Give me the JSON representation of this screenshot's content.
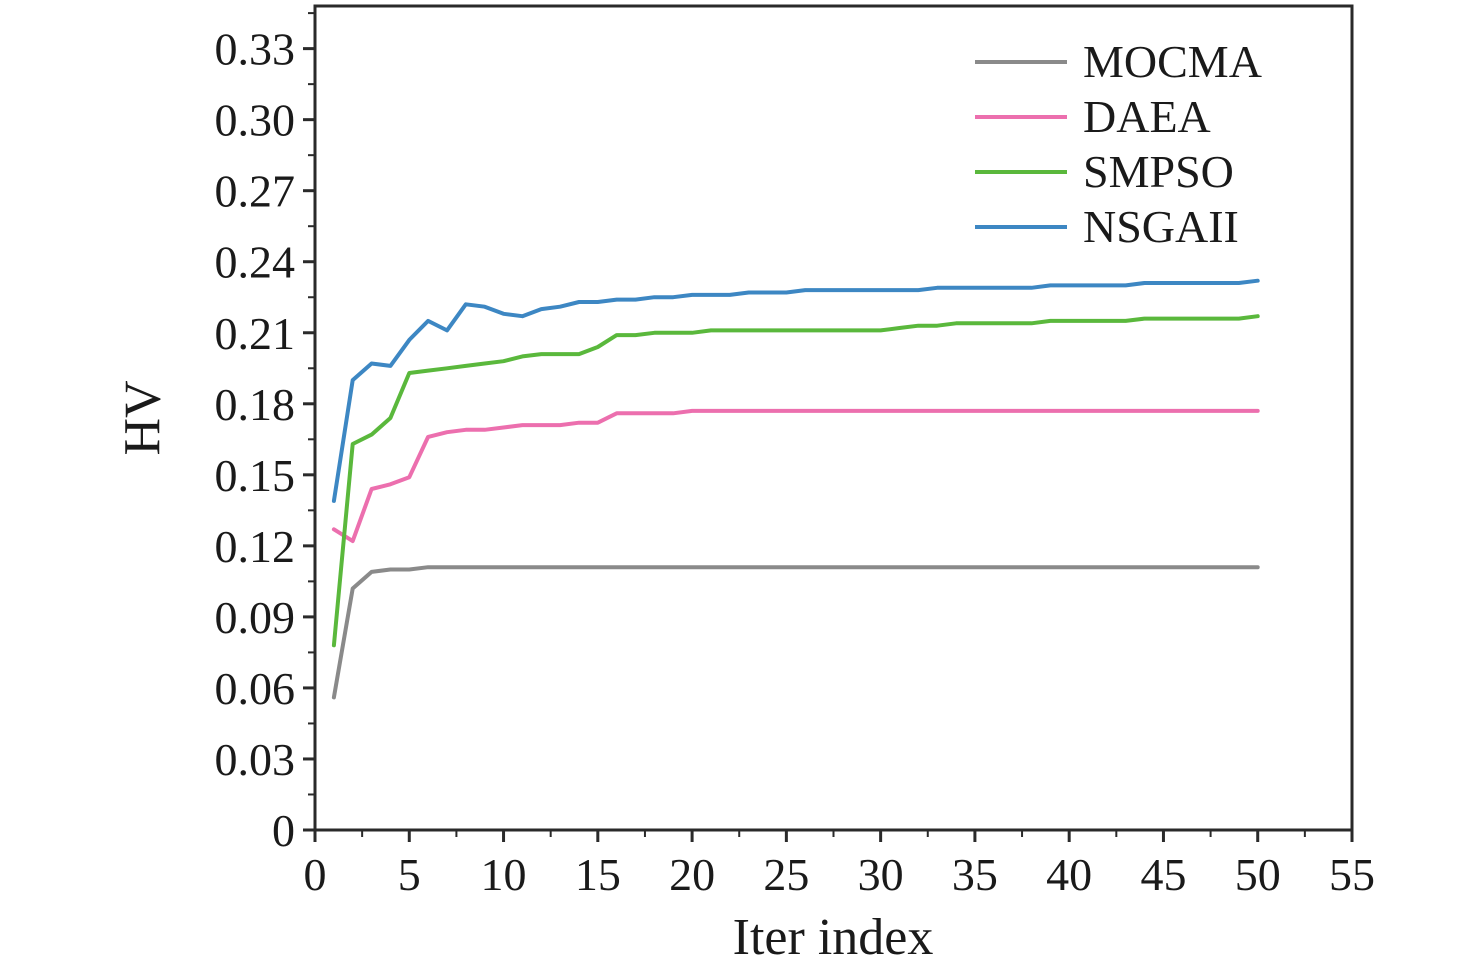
{
  "chart_data": {
    "type": "line",
    "title": "",
    "xlabel": "Iter index",
    "ylabel": "HV",
    "xlim": [
      0,
      55
    ],
    "ylim": [
      0,
      0.348
    ],
    "x_ticks": [
      0,
      5,
      10,
      15,
      20,
      25,
      30,
      35,
      40,
      45,
      50,
      55
    ],
    "y_ticks": [
      0,
      0.03,
      0.06,
      0.09,
      0.12,
      0.15,
      0.18,
      0.21,
      0.24,
      0.27,
      0.3,
      0.33
    ],
    "grid": false,
    "legend_position": "top-right-inside",
    "axis_color": "#2a2a2a",
    "x": [
      1,
      2,
      3,
      4,
      5,
      6,
      7,
      8,
      9,
      10,
      11,
      12,
      13,
      14,
      15,
      16,
      17,
      18,
      19,
      20,
      21,
      22,
      23,
      24,
      25,
      26,
      27,
      28,
      29,
      30,
      31,
      32,
      33,
      34,
      35,
      36,
      37,
      38,
      39,
      40,
      41,
      42,
      43,
      44,
      45,
      46,
      47,
      48,
      49,
      50
    ],
    "series": [
      {
        "name": "MOCMA",
        "color": "#8a8a8a",
        "values": [
          0.056,
          0.102,
          0.109,
          0.11,
          0.11,
          0.111,
          0.111,
          0.111,
          0.111,
          0.111,
          0.111,
          0.111,
          0.111,
          0.111,
          0.111,
          0.111,
          0.111,
          0.111,
          0.111,
          0.111,
          0.111,
          0.111,
          0.111,
          0.111,
          0.111,
          0.111,
          0.111,
          0.111,
          0.111,
          0.111,
          0.111,
          0.111,
          0.111,
          0.111,
          0.111,
          0.111,
          0.111,
          0.111,
          0.111,
          0.111,
          0.111,
          0.111,
          0.111,
          0.111,
          0.111,
          0.111,
          0.111,
          0.111,
          0.111,
          0.111
        ]
      },
      {
        "name": "DAEA",
        "color": "#ec6fae",
        "values": [
          0.127,
          0.122,
          0.144,
          0.146,
          0.149,
          0.166,
          0.168,
          0.169,
          0.169,
          0.17,
          0.171,
          0.171,
          0.171,
          0.172,
          0.172,
          0.176,
          0.176,
          0.176,
          0.176,
          0.177,
          0.177,
          0.177,
          0.177,
          0.177,
          0.177,
          0.177,
          0.177,
          0.177,
          0.177,
          0.177,
          0.177,
          0.177,
          0.177,
          0.177,
          0.177,
          0.177,
          0.177,
          0.177,
          0.177,
          0.177,
          0.177,
          0.177,
          0.177,
          0.177,
          0.177,
          0.177,
          0.177,
          0.177,
          0.177,
          0.177
        ]
      },
      {
        "name": "SMPSO",
        "color": "#5ab83c",
        "values": [
          0.078,
          0.163,
          0.167,
          0.174,
          0.193,
          0.194,
          0.195,
          0.196,
          0.197,
          0.198,
          0.2,
          0.201,
          0.201,
          0.201,
          0.204,
          0.209,
          0.209,
          0.21,
          0.21,
          0.21,
          0.211,
          0.211,
          0.211,
          0.211,
          0.211,
          0.211,
          0.211,
          0.211,
          0.211,
          0.211,
          0.212,
          0.213,
          0.213,
          0.214,
          0.214,
          0.214,
          0.214,
          0.214,
          0.215,
          0.215,
          0.215,
          0.215,
          0.215,
          0.216,
          0.216,
          0.216,
          0.216,
          0.216,
          0.216,
          0.217
        ]
      },
      {
        "name": "NSGAII",
        "color": "#3d87c3",
        "values": [
          0.139,
          0.19,
          0.197,
          0.196,
          0.207,
          0.215,
          0.211,
          0.222,
          0.221,
          0.218,
          0.217,
          0.22,
          0.221,
          0.223,
          0.223,
          0.224,
          0.224,
          0.225,
          0.225,
          0.226,
          0.226,
          0.226,
          0.227,
          0.227,
          0.227,
          0.228,
          0.228,
          0.228,
          0.228,
          0.228,
          0.228,
          0.228,
          0.229,
          0.229,
          0.229,
          0.229,
          0.229,
          0.229,
          0.23,
          0.23,
          0.23,
          0.23,
          0.23,
          0.231,
          0.231,
          0.231,
          0.231,
          0.231,
          0.231,
          0.232
        ]
      }
    ]
  }
}
